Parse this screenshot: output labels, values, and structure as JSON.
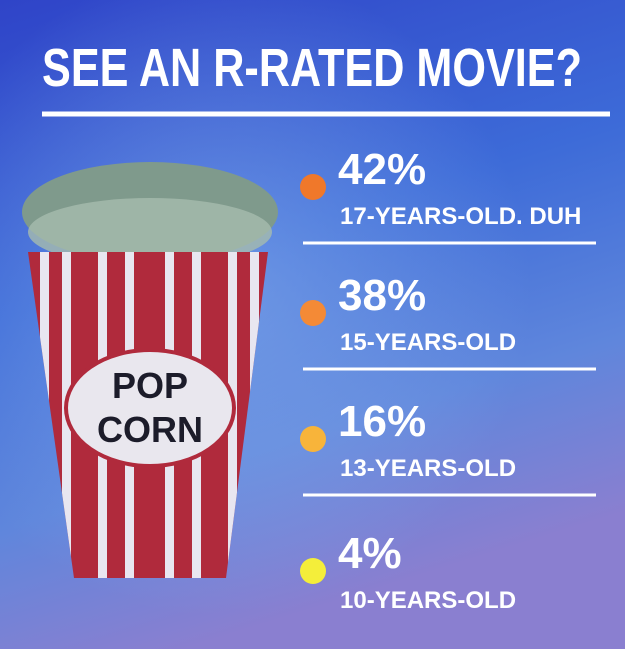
{
  "header": {
    "title": "SEE AN R-RATED MOVIE?"
  },
  "illustration": {
    "text_lines": [
      "POP",
      "CORN"
    ]
  },
  "items": [
    {
      "value": "42%",
      "label": "17-YEARS-OLD. DUH",
      "color": "#f0782a"
    },
    {
      "value": "38%",
      "label": "15-YEARS-OLD",
      "color": "#f48a36"
    },
    {
      "value": "16%",
      "label": "13-YEARS-OLD",
      "color": "#f8b43a"
    },
    {
      "value": "4%",
      "label": "10-YEARS-OLD",
      "color": "#f4ee3a"
    }
  ]
}
